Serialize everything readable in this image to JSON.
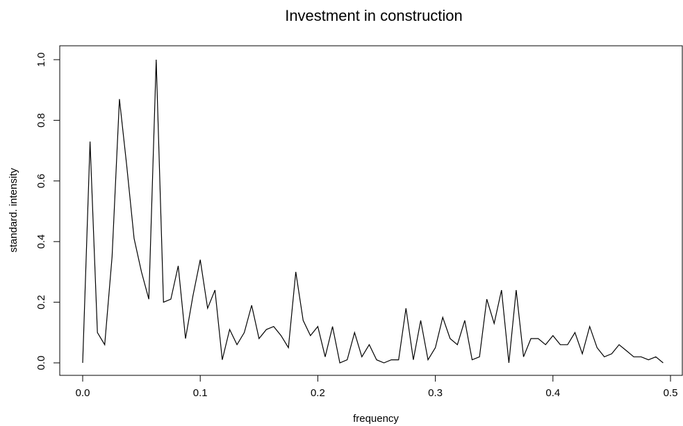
{
  "chart_data": {
    "type": "line",
    "title": "Investment in construction",
    "xlabel": "frequency",
    "ylabel": "standard. intensity",
    "xlim": [
      0.0,
      0.5
    ],
    "ylim": [
      0.0,
      1.0
    ],
    "x_ticks": [
      "0.0",
      "0.1",
      "0.2",
      "0.3",
      "0.4",
      "0.5"
    ],
    "y_ticks": [
      "0.0",
      "0.2",
      "0.4",
      "0.6",
      "0.8",
      "1.0"
    ],
    "grid": false,
    "line_color": "#000000",
    "series": [
      {
        "x": [
          0.0,
          0.00625,
          0.0125,
          0.01875,
          0.025,
          0.03125,
          0.0375,
          0.04375,
          0.05,
          0.05625,
          0.0625,
          0.06875,
          0.075,
          0.08125,
          0.0875,
          0.09375,
          0.1,
          0.10625,
          0.1125,
          0.11875,
          0.125,
          0.13125,
          0.1375,
          0.14375,
          0.15,
          0.15625,
          0.1625,
          0.16875,
          0.175,
          0.18125,
          0.1875,
          0.19375,
          0.2,
          0.20625,
          0.2125,
          0.21875,
          0.225,
          0.23125,
          0.2375,
          0.24375,
          0.25,
          0.25625,
          0.2625,
          0.26875,
          0.275,
          0.28125,
          0.2875,
          0.29375,
          0.3,
          0.30625,
          0.3125,
          0.31875,
          0.325,
          0.33125,
          0.3375,
          0.34375,
          0.35,
          0.35625,
          0.3625,
          0.36875,
          0.375,
          0.38125,
          0.3875,
          0.39375,
          0.4,
          0.40625,
          0.4125,
          0.41875,
          0.425,
          0.43125,
          0.4375,
          0.44375,
          0.45,
          0.45625,
          0.4625,
          0.46875,
          0.475,
          0.48125,
          0.4875,
          0.49375
        ],
        "values": [
          0.0,
          0.73,
          0.1,
          0.06,
          0.35,
          0.87,
          0.65,
          0.41,
          0.3,
          0.21,
          1.0,
          0.2,
          0.21,
          0.32,
          0.08,
          0.22,
          0.34,
          0.18,
          0.24,
          0.01,
          0.11,
          0.06,
          0.1,
          0.19,
          0.08,
          0.11,
          0.12,
          0.09,
          0.05,
          0.3,
          0.14,
          0.09,
          0.12,
          0.02,
          0.12,
          0.0,
          0.01,
          0.1,
          0.02,
          0.06,
          0.01,
          0.0,
          0.01,
          0.01,
          0.18,
          0.01,
          0.14,
          0.01,
          0.05,
          0.15,
          0.08,
          0.06,
          0.14,
          0.01,
          0.02,
          0.21,
          0.13,
          0.24,
          0.0,
          0.24,
          0.02,
          0.08,
          0.08,
          0.06,
          0.09,
          0.06,
          0.06,
          0.1,
          0.03,
          0.12,
          0.05,
          0.02,
          0.03,
          0.06,
          0.04,
          0.02,
          0.02,
          0.01,
          0.02,
          0.0
        ]
      }
    ]
  }
}
